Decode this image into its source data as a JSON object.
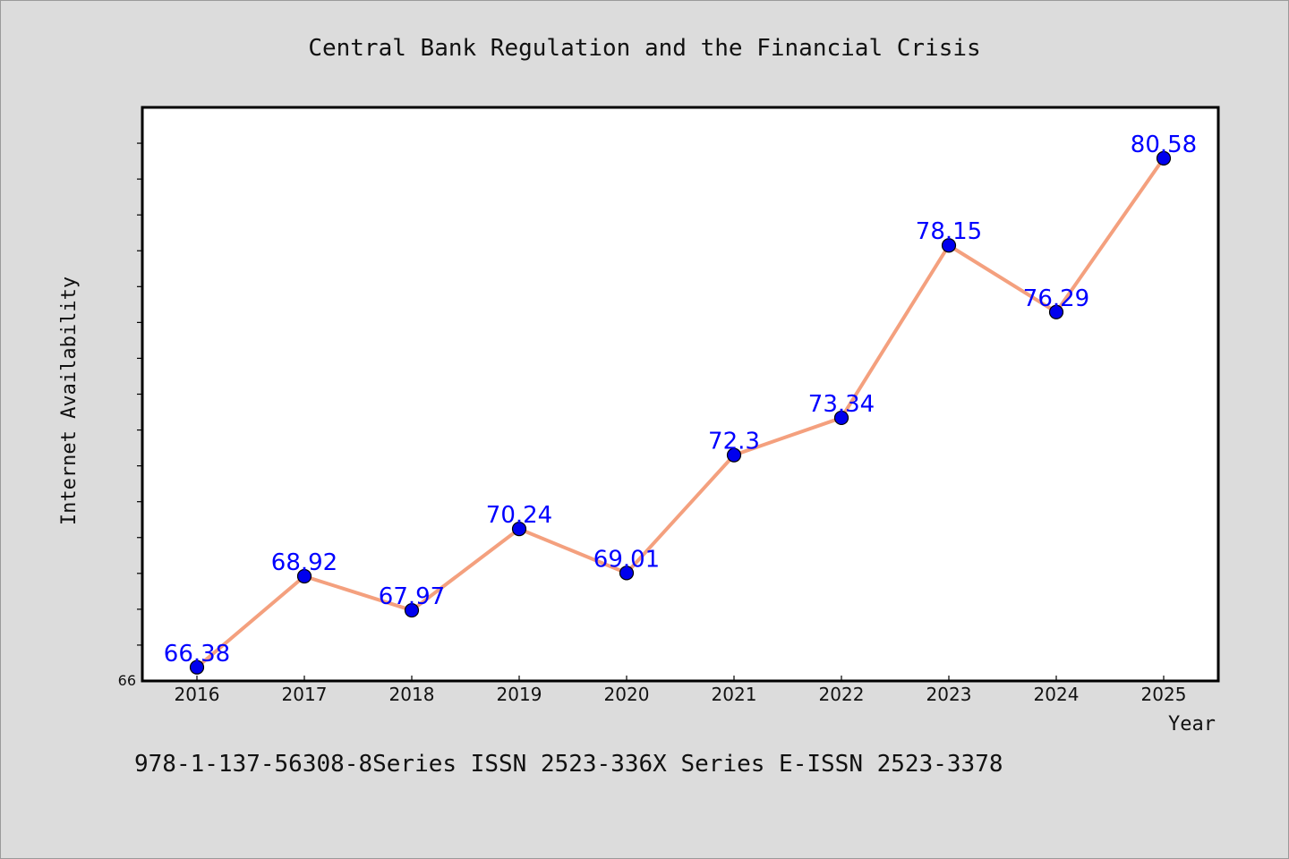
{
  "chart_data": {
    "type": "line",
    "title": "Central Bank Regulation and the Financial Crisis",
    "xlabel": "Year",
    "ylabel": "Internet Availability",
    "categories": [
      "2016",
      "2017",
      "2018",
      "2019",
      "2020",
      "2021",
      "2022",
      "2023",
      "2024",
      "2025"
    ],
    "series": [
      {
        "values": [
          66.38,
          68.92,
          67.97,
          70.24,
          69.01,
          72.3,
          73.34,
          78.15,
          76.29,
          80.58
        ],
        "data_labels": [
          "66.38",
          "68.92",
          "67.97",
          "70.24",
          "69.01",
          "72.3",
          "73.34",
          "78.15",
          "76.29",
          "80.58"
        ]
      }
    ],
    "ylim": [
      66,
      82
    ],
    "y_min_label": "66",
    "grid": false,
    "colors": {
      "line": "#f4a07e",
      "marker": "#0000ee",
      "labels": "#0000ff",
      "background": "#dcdcdc",
      "plot_bg": "#ffffff"
    }
  },
  "footer": {
    "text": "978-1-137-56308-8Series ISSN 2523-336X Series E-ISSN 2523-3378"
  }
}
